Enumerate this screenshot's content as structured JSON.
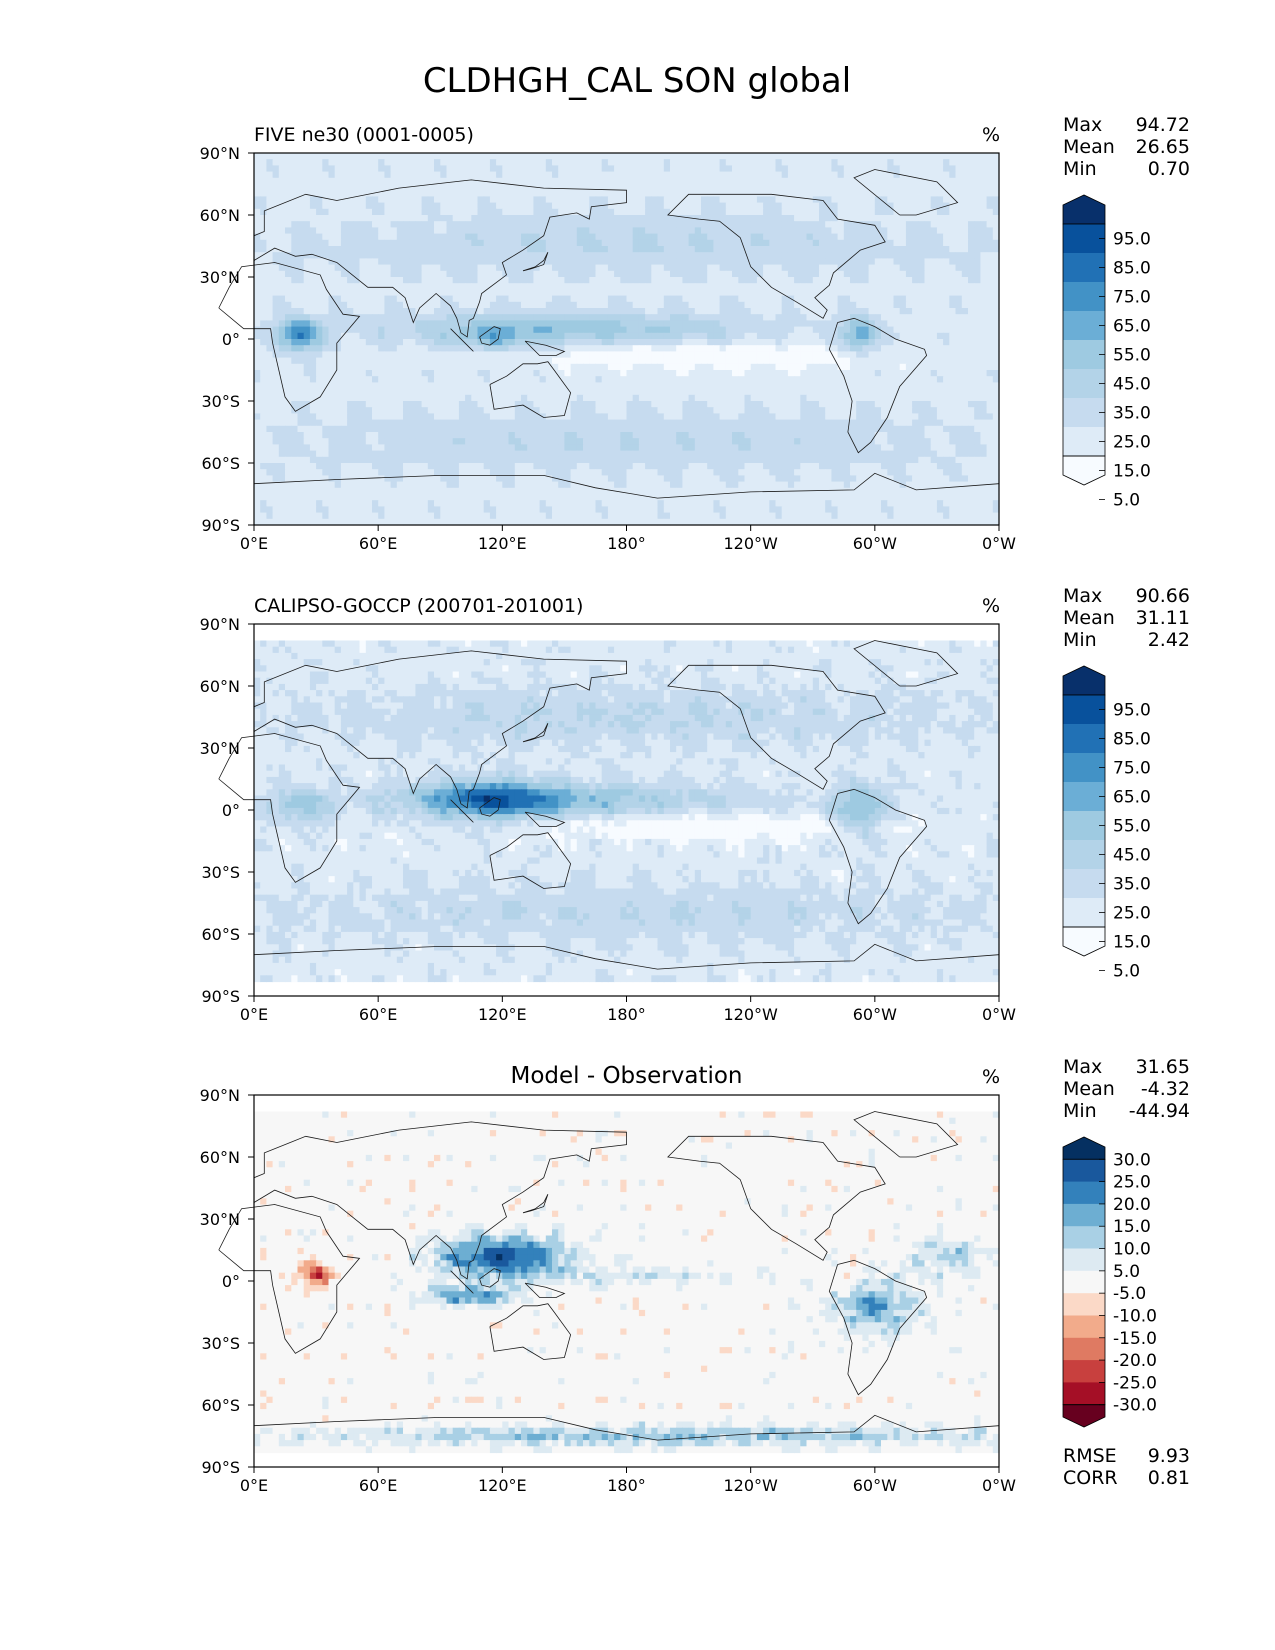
{
  "figure": {
    "title": "CLDHGH_CAL SON global"
  },
  "colors": {
    "blues": [
      "#f7fbff",
      "#deebf7",
      "#c6dbef",
      "#b3d3e8",
      "#9ecae1",
      "#6baed6",
      "#4292c6",
      "#2171b5",
      "#08519c",
      "#08306b"
    ],
    "diff": [
      "#67001f",
      "#a50f26",
      "#c8403e",
      "#df7a62",
      "#f2ab8b",
      "#fbd9c7",
      "#f7f7f7",
      "#ddeaf2",
      "#a9d0e5",
      "#6daed2",
      "#3381bb",
      "#19589d",
      "#053061"
    ],
    "coast": "#1a1a1a"
  },
  "chart_data": [
    {
      "type": "heatmap",
      "title": "FIVE ne30 (0001-0005)",
      "center_title": "",
      "units": "%",
      "stats": [
        {
          "label": "Max",
          "value": "94.72"
        },
        {
          "label": "Mean",
          "value": "26.65"
        },
        {
          "label": "Min",
          "value": "0.70"
        }
      ],
      "colorbar_ticks": [
        "95.0",
        "85.0",
        "75.0",
        "65.0",
        "55.0",
        "45.0",
        "35.0",
        "25.0",
        "15.0",
        "5.0"
      ],
      "x_ticks": [
        "0°E",
        "60°E",
        "120°E",
        "180°",
        "120°W",
        "60°W",
        "0°W"
      ],
      "y_ticks": [
        "90°N",
        "60°N",
        "30°N",
        "0°",
        "30°S",
        "60°S",
        "90°S"
      ],
      "lon_range": [
        0,
        360
      ],
      "lat_range": [
        -90,
        90
      ],
      "footer": []
    },
    {
      "type": "heatmap",
      "title": "CALIPSO-GOCCP (200701-201001)",
      "center_title": "",
      "units": "%",
      "stats": [
        {
          "label": "Max",
          "value": "90.66"
        },
        {
          "label": "Mean",
          "value": "31.11"
        },
        {
          "label": "Min",
          "value": "2.42"
        }
      ],
      "colorbar_ticks": [
        "95.0",
        "85.0",
        "75.0",
        "65.0",
        "55.0",
        "45.0",
        "35.0",
        "25.0",
        "15.0",
        "5.0"
      ],
      "x_ticks": [
        "0°E",
        "60°E",
        "120°E",
        "180°",
        "120°W",
        "60°W",
        "0°W"
      ],
      "y_ticks": [
        "90°N",
        "60°N",
        "30°N",
        "0°",
        "30°S",
        "60°S",
        "90°S"
      ],
      "lon_range": [
        0,
        360
      ],
      "lat_range": [
        -90,
        90
      ],
      "footer": []
    },
    {
      "type": "heatmap",
      "title": "",
      "center_title": "Model - Observation",
      "units": "%",
      "stats": [
        {
          "label": "Max",
          "value": "31.65"
        },
        {
          "label": "Mean",
          "value": "-4.32"
        },
        {
          "label": "Min",
          "value": "-44.94"
        }
      ],
      "colorbar_ticks": [
        "30.0",
        "25.0",
        "20.0",
        "15.0",
        "10.0",
        "5.0",
        "-5.0",
        "-10.0",
        "-15.0",
        "-20.0",
        "-25.0",
        "-30.0"
      ],
      "x_ticks": [
        "0°E",
        "60°E",
        "120°E",
        "180°",
        "120°W",
        "60°W",
        "0°W"
      ],
      "y_ticks": [
        "90°N",
        "60°N",
        "30°N",
        "0°",
        "30°S",
        "60°S",
        "90°S"
      ],
      "lon_range": [
        0,
        360
      ],
      "lat_range": [
        -90,
        90
      ],
      "footer": [
        {
          "label": "RMSE",
          "value": "9.93"
        },
        {
          "label": "CORR",
          "value": "0.81"
        }
      ]
    }
  ]
}
